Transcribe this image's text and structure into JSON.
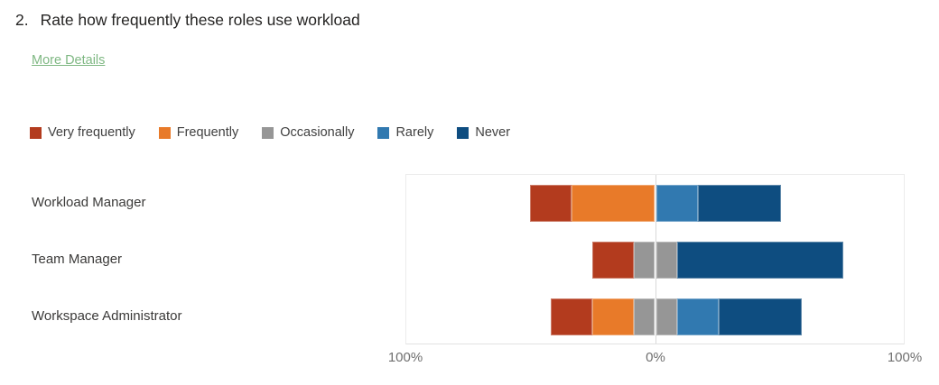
{
  "question": {
    "number": "2.",
    "title": "Rate how frequently these roles use workload"
  },
  "more_details_label": "More Details",
  "chart_data": {
    "type": "bar",
    "subtype": "diverging-stacked-horizontal",
    "title": "Rate how frequently these roles use workload",
    "categories": [
      "Workload Manager",
      "Team Manager",
      "Workspace Administrator"
    ],
    "series": [
      {
        "name": "Very frequently",
        "color": "#b33b1e",
        "values": [
          16.7,
          16.7,
          16.7
        ]
      },
      {
        "name": "Frequently",
        "color": "#e87a29",
        "values": [
          33.3,
          0,
          16.7
        ]
      },
      {
        "name": "Occasionally",
        "color": "#969696",
        "values": [
          0,
          16.7,
          16.7
        ]
      },
      {
        "name": "Rarely",
        "color": "#3179b0",
        "values": [
          16.7,
          0,
          16.7
        ]
      },
      {
        "name": "Never",
        "color": "#0e4d80",
        "values": [
          33.3,
          66.7,
          33.3
        ]
      }
    ],
    "axis": {
      "ticks": [
        "100%",
        "0%",
        "100%"
      ],
      "xlim": [
        -100,
        100
      ],
      "center_line": "0%",
      "note": "middle category (Occasionally) straddles the 0% center line; left side = Very frequently + Frequently, right side = Rarely + Never"
    },
    "legend_position": "top",
    "grid": "center-line-only"
  }
}
